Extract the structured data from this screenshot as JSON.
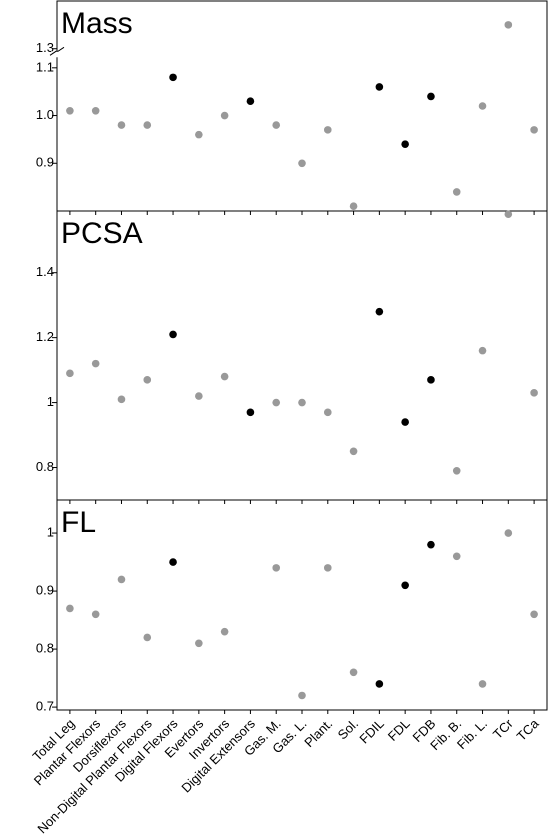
{
  "chart_data": [
    {
      "type": "scatter",
      "title": "Mass",
      "categories": [
        "Total Leg",
        "Plantar Flexors",
        "Dorsiflexors",
        "Non-Digital Plantar Flexors",
        "Digital Flexors",
        "Evertors",
        "Invertors",
        "Digital Extensors",
        "Gas. M.",
        "Gas. L.",
        "Plant.",
        "Sol.",
        "FDIL",
        "FDL",
        "FDB",
        "Fib. B.",
        "Fib. L.",
        "TCr",
        "TCa"
      ],
      "values": [
        1.01,
        1.01,
        0.98,
        0.98,
        1.08,
        0.96,
        1.0,
        1.03,
        0.98,
        0.9,
        0.97,
        0.81,
        1.06,
        0.94,
        1.04,
        0.84,
        1.02,
        1.35,
        0.97
      ],
      "point_colors": [
        "#999999",
        "#999999",
        "#999999",
        "#999999",
        "#000000",
        "#999999",
        "#999999",
        "#000000",
        "#999999",
        "#999999",
        "#999999",
        "#999999",
        "#000000",
        "#000000",
        "#000000",
        "#999999",
        "#999999",
        "#999999",
        "#999999"
      ],
      "ylim": [
        0.8,
        1.4
      ],
      "axis_break": [
        1.12,
        1.28
      ],
      "yticks": [
        0.9,
        {
          "value": 1.0,
          "label": "1.0"
        },
        1.1,
        1.3
      ]
    },
    {
      "type": "scatter",
      "title": "PCSA",
      "categories": [
        "Total Leg",
        "Plantar Flexors",
        "Dorsiflexors",
        "Non-Digital Plantar Flexors",
        "Digital Flexors",
        "Evertors",
        "Invertors",
        "Digital Extensors",
        "Gas. M.",
        "Gas. L.",
        "Plant.",
        "Sol.",
        "FDIL",
        "FDL",
        "FDB",
        "Fib. B.",
        "Fib. L.",
        "TCr",
        "TCa"
      ],
      "values": [
        1.09,
        1.12,
        1.01,
        1.07,
        1.21,
        1.02,
        1.08,
        0.97,
        1.0,
        1.0,
        0.97,
        0.85,
        1.28,
        0.94,
        1.07,
        0.79,
        1.16,
        1.58,
        1.03
      ],
      "point_colors": [
        "#999999",
        "#999999",
        "#999999",
        "#999999",
        "#000000",
        "#999999",
        "#999999",
        "#000000",
        "#999999",
        "#999999",
        "#999999",
        "#999999",
        "#000000",
        "#000000",
        "#000000",
        "#999999",
        "#999999",
        "#999999",
        "#999999"
      ],
      "ylim": [
        0.7,
        1.59
      ],
      "yticks": [
        0.8,
        1,
        1.2,
        1.4
      ]
    },
    {
      "type": "scatter",
      "title": "FL",
      "categories": [
        "Total Leg",
        "Plantar Flexors",
        "Dorsiflexors",
        "Non-Digital Plantar Flexors",
        "Digital Flexors",
        "Evertors",
        "Invertors",
        "Digital Extensors",
        "Gas. M.",
        "Gas. L.",
        "Plant.",
        "Sol.",
        "FDIL",
        "FDL",
        "FDB",
        "Fib. B.",
        "Fib. L.",
        "TCr",
        "TCa"
      ],
      "values": [
        0.87,
        0.86,
        0.92,
        0.82,
        0.95,
        0.81,
        0.83,
        null,
        0.94,
        0.72,
        0.94,
        0.76,
        0.74,
        0.91,
        0.98,
        0.96,
        0.74,
        1.0,
        0.86
      ],
      "point_colors": [
        "#999999",
        "#999999",
        "#999999",
        "#999999",
        "#000000",
        "#999999",
        "#999999",
        "#000000",
        "#999999",
        "#999999",
        "#999999",
        "#999999",
        "#000000",
        "#000000",
        "#000000",
        "#999999",
        "#999999",
        "#999999",
        "#999999"
      ],
      "ylim": [
        0.695,
        1.057
      ],
      "yticks": [
        0.7,
        0.8,
        0.9,
        1
      ],
      "show_category_labels": true
    }
  ]
}
